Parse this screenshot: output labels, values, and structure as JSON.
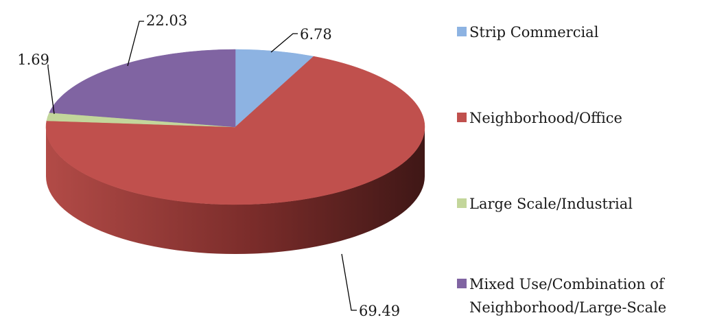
{
  "chart_data": {
    "type": "pie",
    "title": "",
    "legend_position": "right",
    "grid": false,
    "categories": [
      "Strip Commercial",
      "Neighborhood/Office",
      "Large Scale/Industrial",
      "Mixed Use/Combination of Neighborhood/Large-Scale"
    ],
    "values": [
      6.78,
      69.49,
      1.69,
      22.03
    ],
    "value_labels": [
      "6.78",
      "69.49",
      "1.69",
      "22.03"
    ],
    "legend_lines": [
      [
        "Strip Commercial"
      ],
      [
        "Neighborhood/Office"
      ],
      [
        "Large Scale/Industrial"
      ],
      [
        "Mixed Use/Combination of",
        "Neighborhood/Large-Scale"
      ]
    ],
    "colors": [
      "#8DB3E2",
      "#C0504D",
      "#C3D69B",
      "#8064A2"
    ],
    "side_colors": [
      "#5F7FA8",
      "#8E3432",
      "#93A66B",
      "#5B4476"
    ]
  }
}
